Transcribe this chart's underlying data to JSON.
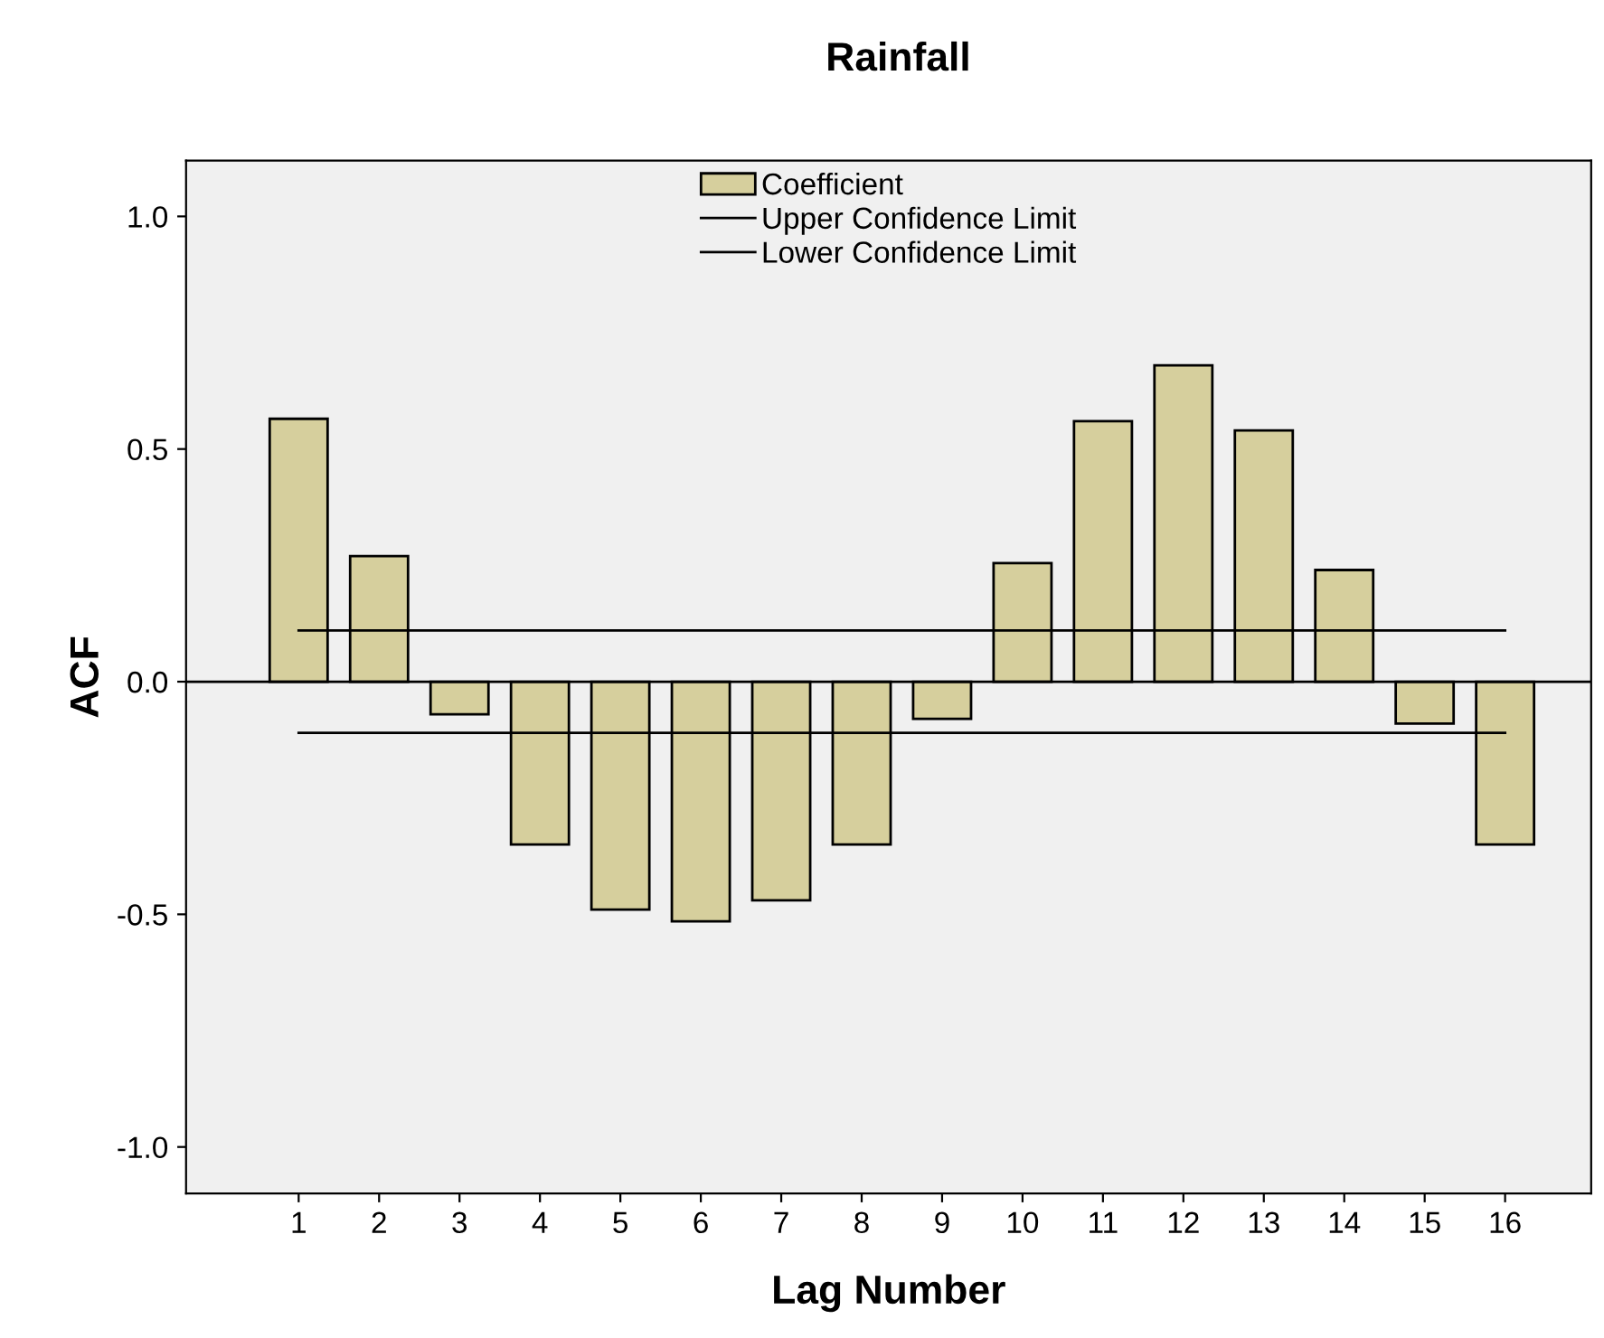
{
  "chart_data": {
    "type": "bar",
    "title": "Rainfall",
    "xlabel": "Lag Number",
    "ylabel": "ACF",
    "categories": [
      "1",
      "2",
      "3",
      "4",
      "5",
      "6",
      "7",
      "8",
      "9",
      "10",
      "11",
      "12",
      "13",
      "14",
      "15",
      "16"
    ],
    "series": [
      {
        "name": "Coefficient",
        "color": "#d6cf9d",
        "values": [
          0.565,
          0.27,
          -0.07,
          -0.35,
          -0.49,
          -0.515,
          -0.47,
          -0.35,
          -0.08,
          0.255,
          0.56,
          0.68,
          0.54,
          0.24,
          -0.09,
          -0.35
        ]
      },
      {
        "name": "Upper Confidence Limit",
        "type": "line",
        "color": "#000000",
        "values": [
          0.11,
          0.11,
          0.11,
          0.11,
          0.11,
          0.11,
          0.11,
          0.11,
          0.11,
          0.11,
          0.11,
          0.11,
          0.11,
          0.11,
          0.11,
          0.11
        ]
      },
      {
        "name": "Lower Confidence Limit",
        "type": "line",
        "color": "#000000",
        "values": [
          -0.11,
          -0.11,
          -0.11,
          -0.11,
          -0.11,
          -0.11,
          -0.11,
          -0.11,
          -0.11,
          -0.11,
          -0.11,
          -0.11,
          -0.11,
          -0.11,
          -0.11,
          -0.11
        ]
      }
    ],
    "ylim": [
      -1.1,
      1.12
    ],
    "yticks": [
      {
        "value": -1,
        "label": "-1.0"
      },
      {
        "value": -0.5,
        "label": "-0.5"
      },
      {
        "value": 0,
        "label": "0.0"
      },
      {
        "value": 0.5,
        "label": "0.5"
      },
      {
        "value": 1,
        "label": "1.0"
      }
    ],
    "ref_lines": [
      {
        "axis": "y",
        "value": 0,
        "color": "#000000"
      }
    ],
    "grid": false,
    "legend": "top"
  }
}
